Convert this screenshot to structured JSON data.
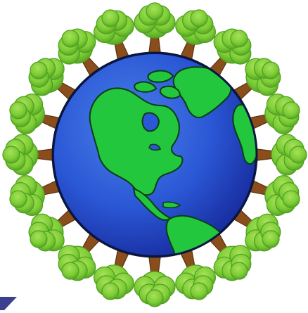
{
  "image": {
    "subject": "globe-surrounded-by-trees",
    "icon_names": [
      "earth-globe-icon",
      "tree-icon",
      "corner-triangle-icon"
    ]
  },
  "colors": {
    "background": "#ffffff",
    "ocean_light": "#4a7fe8",
    "ocean_mid": "#2b58d6",
    "ocean_dark": "#16289a",
    "globe_outline": "#0a1640",
    "land": "#22c73d",
    "land_outline": "#0b3d12",
    "trunk": "#8a4e1c",
    "trunk_dark": "#5a2f0c",
    "foliage_light": "#a8e05a",
    "foliage_mid": "#7ccd35",
    "foliage_dark": "#4f9e22",
    "corner_mark": "#3b3f8f"
  },
  "scene": {
    "tree_count": 20
  }
}
